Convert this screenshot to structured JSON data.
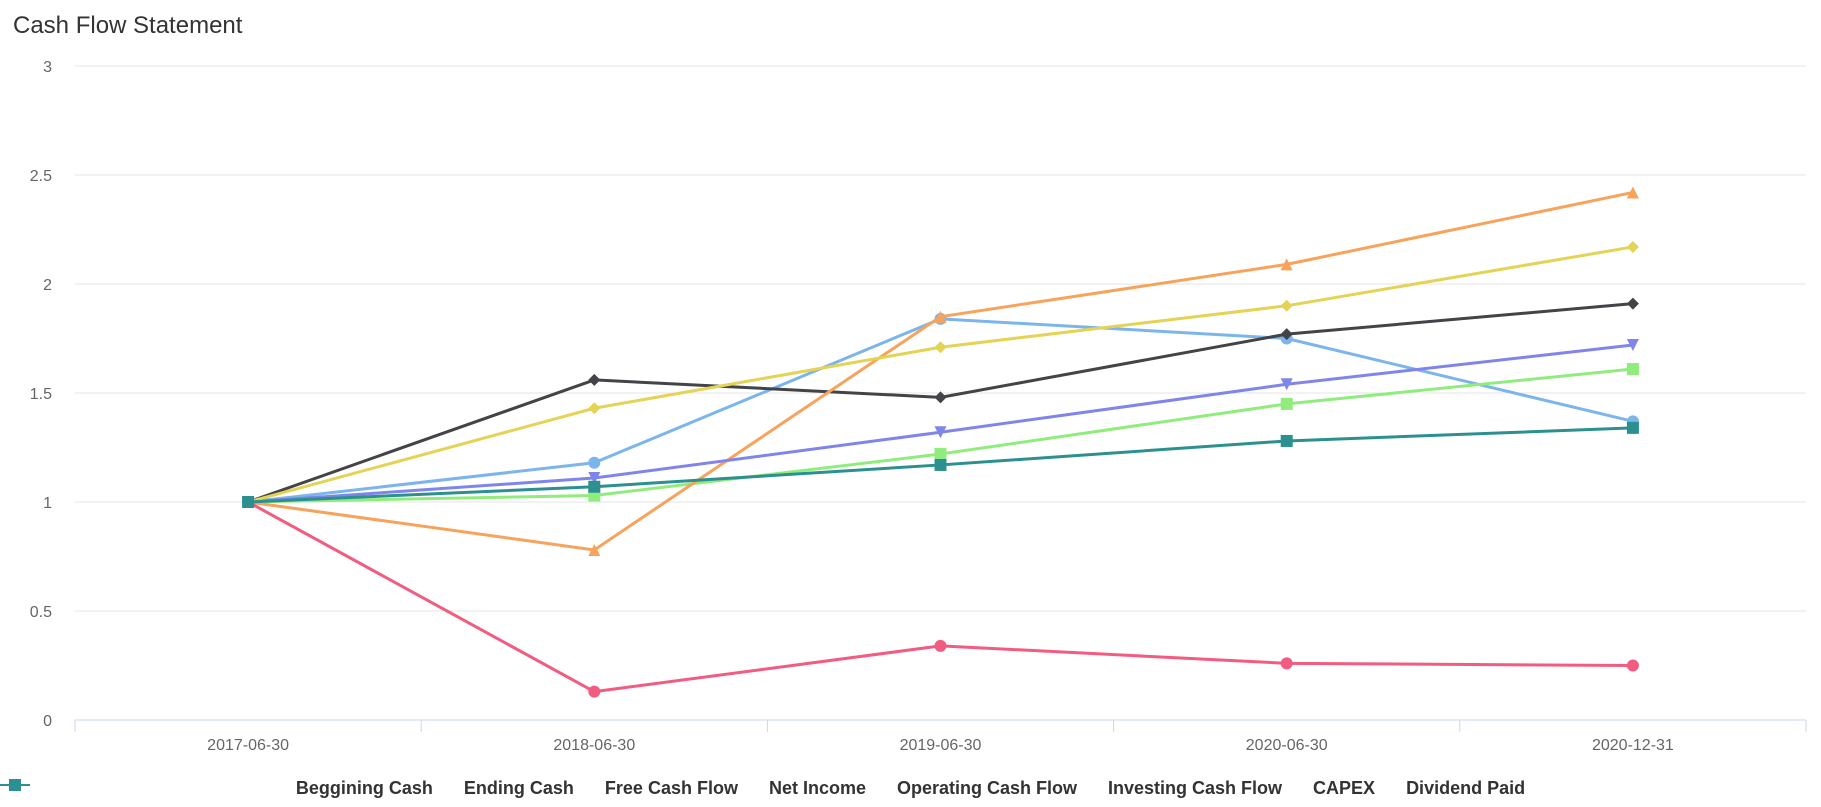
{
  "title": "Cash Flow Statement",
  "chart_data": {
    "type": "line",
    "title": "Cash Flow Statement",
    "categories": [
      "2017-06-30",
      "2018-06-30",
      "2019-06-30",
      "2020-06-30",
      "2020-12-31"
    ],
    "ylim": [
      0,
      3
    ],
    "yticks": [
      "0",
      "0.5",
      "1",
      "1.5",
      "2",
      "2.5",
      "3"
    ],
    "grid": true,
    "legend_position": "bottom",
    "series": [
      {
        "name": "Beggining Cash",
        "color": "#7cb5ec",
        "marker": "circle",
        "values": [
          1,
          1.18,
          1.84,
          1.75,
          1.37
        ]
      },
      {
        "name": "Ending Cash",
        "color": "#434348",
        "marker": "diamond",
        "values": [
          1,
          1.56,
          1.48,
          1.77,
          1.91
        ]
      },
      {
        "name": "Free Cash Flow",
        "color": "#90ed7d",
        "marker": "square",
        "values": [
          1,
          1.03,
          1.22,
          1.45,
          1.61
        ]
      },
      {
        "name": "Net Income",
        "color": "#f7a35c",
        "marker": "triangle",
        "values": [
          1,
          0.78,
          1.85,
          2.09,
          2.42
        ]
      },
      {
        "name": "Operating Cash Flow",
        "color": "#8085e9",
        "marker": "triangle-down",
        "values": [
          1,
          1.11,
          1.32,
          1.54,
          1.72
        ]
      },
      {
        "name": "Investing Cash Flow",
        "color": "#f15c80",
        "marker": "circle",
        "values": [
          1,
          0.13,
          0.34,
          0.26,
          0.25
        ]
      },
      {
        "name": "CAPEX",
        "color": "#e4d354",
        "marker": "diamond",
        "values": [
          1,
          1.43,
          1.71,
          1.9,
          2.17
        ]
      },
      {
        "name": "Dividend Paid",
        "color": "#2b908f",
        "marker": "square",
        "values": [
          1,
          1.07,
          1.17,
          1.28,
          1.34
        ]
      }
    ]
  }
}
